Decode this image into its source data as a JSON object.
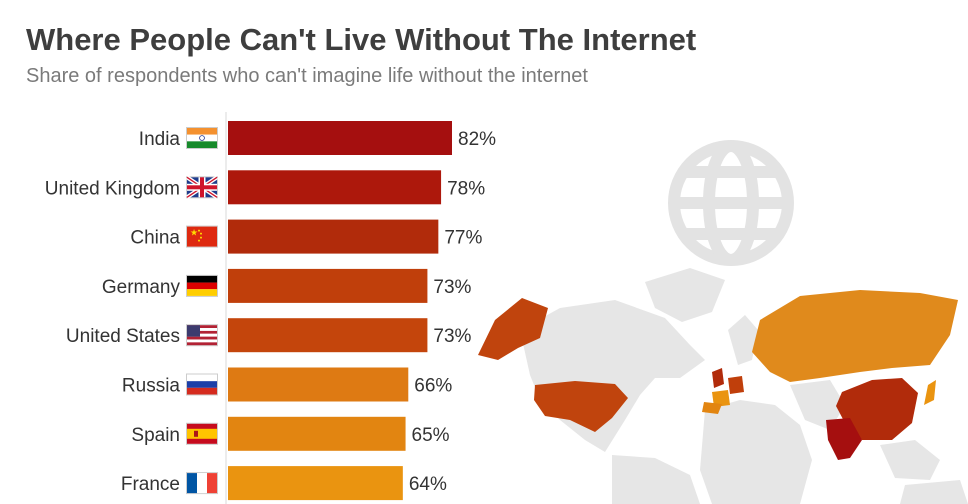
{
  "header": {
    "title": "Where People Can't Live Without The Internet",
    "subtitle": "Share of respondents who can't imagine life without the internet"
  },
  "chart_data": {
    "type": "bar",
    "orientation": "horizontal",
    "title": "Where People Can't Live Without The Internet",
    "subtitle": "Share of respondents who can't imagine life without the internet",
    "categories": [
      "India",
      "United Kingdom",
      "China",
      "Germany",
      "United States",
      "Russia",
      "Spain",
      "France"
    ],
    "values": [
      82,
      78,
      77,
      73,
      73,
      66,
      65,
      64
    ],
    "labels": [
      "82%",
      "78%",
      "77%",
      "73%",
      "73%",
      "66%",
      "65%",
      "64%"
    ],
    "flags": [
      "india-flag",
      "united-kingdom-flag",
      "china-flag",
      "germany-flag",
      "united-states-flag",
      "russia-flag",
      "spain-flag",
      "france-flag"
    ],
    "bar_colors": [
      "#a50f0f",
      "#ad180c",
      "#b12b0b",
      "#c03f0b",
      "#c4450c",
      "#de7a13",
      "#e28511",
      "#ea9410"
    ],
    "unit": "%",
    "xlim": [
      0,
      82
    ]
  },
  "decorations": {
    "globe_icon": "globe-icon",
    "background_map": "world-map-illustration",
    "map_colors": {
      "land_gray": "#e6e6e6",
      "usa": "#c0440d",
      "russia": "#e08a1c",
      "china": "#b12b0b",
      "india": "#a50f0f",
      "europe": "#e89a18",
      "globe": "#e3e3e3"
    }
  }
}
